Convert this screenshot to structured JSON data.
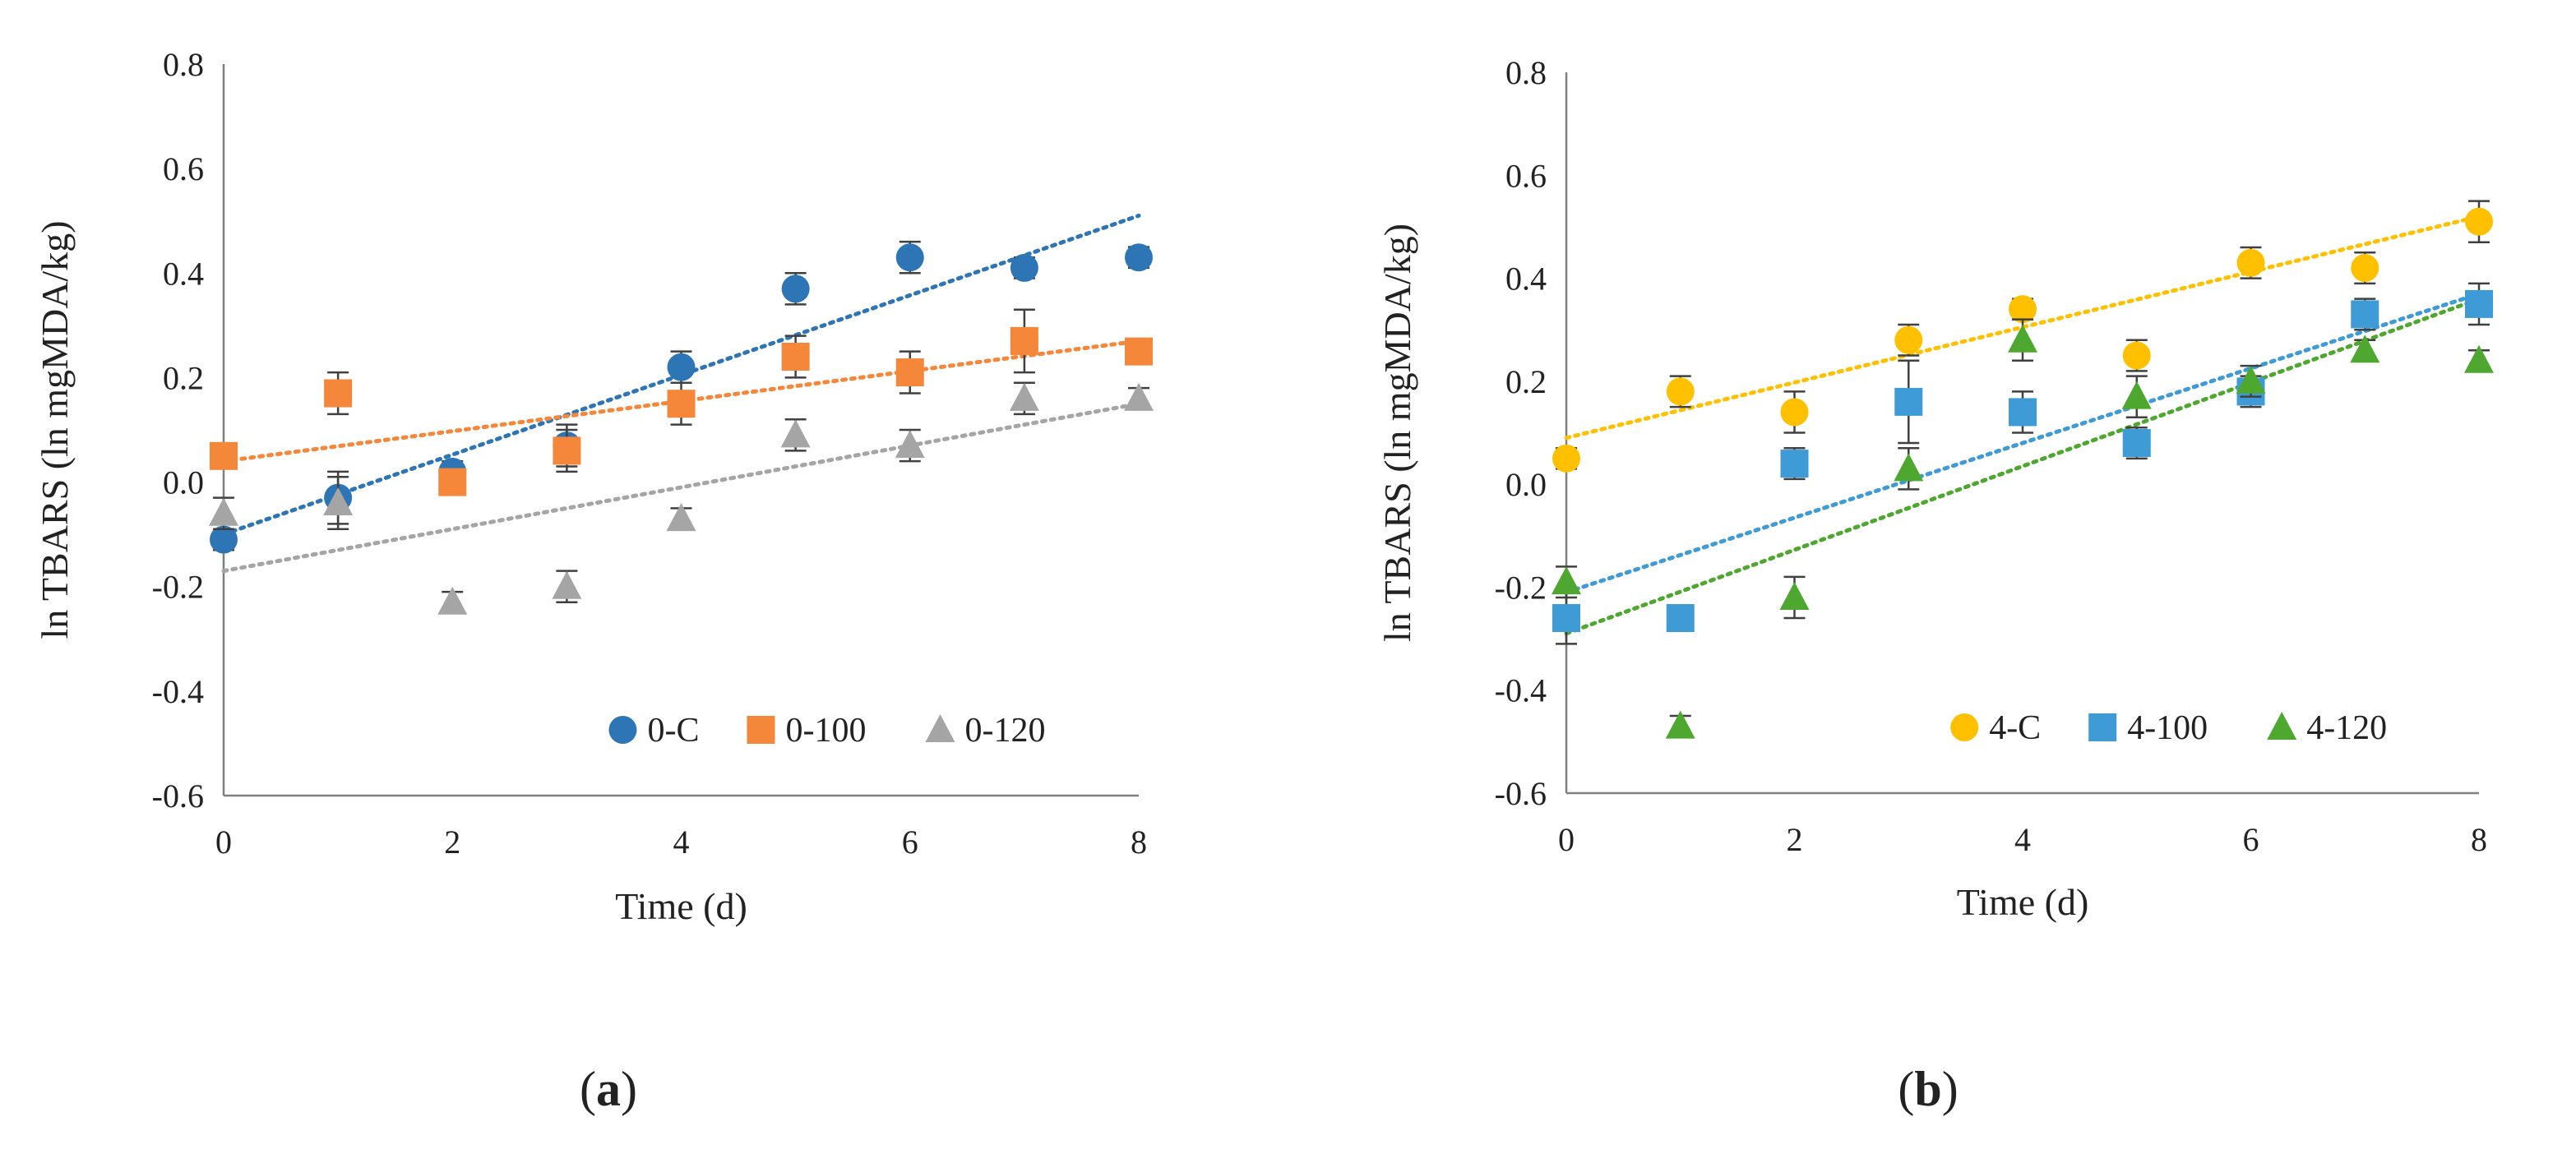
{
  "panels": [
    {
      "caption": "a",
      "chart_data": {
        "type": "scatter",
        "xlabel": "Time (d)",
        "ylabel": "ln TBARS (ln mgMDA/kg)",
        "xlim": [
          0,
          8
        ],
        "ylim": [
          -0.6,
          0.8
        ],
        "x_ticks": [
          "0",
          "2",
          "4",
          "6",
          "8"
        ],
        "y_ticks": [
          "-0.6",
          "-0.4",
          "-0.2",
          "0.0",
          "0.2",
          "0.4",
          "0.6",
          "0.8"
        ],
        "grid": false,
        "legend_position": "bottom-right",
        "trendlines": "linear, dotted",
        "series": [
          {
            "name": "0-C",
            "marker": "circle",
            "color": "#2E75B6",
            "x": [
              0,
              1,
              2,
              3,
              4,
              5,
              6,
              7,
              8
            ],
            "y": [
              -0.11,
              -0.03,
              0.02,
              0.07,
              0.22,
              0.37,
              0.43,
              0.41,
              0.43
            ],
            "err": [
              0.02,
              0.05,
              0.02,
              0.04,
              0.03,
              0.03,
              0.03,
              0.02,
              0.02
            ],
            "trend": [
              -0.1,
              0.51
            ]
          },
          {
            "name": "0-100",
            "marker": "square",
            "color": "#F4873A",
            "x": [
              0,
              1,
              2,
              3,
              4,
              5,
              6,
              7,
              8
            ],
            "y": [
              0.05,
              0.17,
              0.0,
              0.06,
              0.15,
              0.24,
              0.21,
              0.27,
              0.25
            ],
            "err": [
              0.02,
              0.04,
              0.02,
              0.04,
              0.04,
              0.04,
              0.04,
              0.06,
              0.02
            ],
            "trend": [
              0.04,
              0.27
            ]
          },
          {
            "name": "0-120",
            "marker": "triangle",
            "color": "#A5A5A5",
            "x": [
              0,
              1,
              2,
              3,
              4,
              5,
              6,
              7,
              8
            ],
            "y": [
              -0.06,
              -0.04,
              -0.23,
              -0.2,
              -0.07,
              0.09,
              0.07,
              0.16,
              0.16
            ],
            "err": [
              0.03,
              0.05,
              0.02,
              0.03,
              0.02,
              0.03,
              0.03,
              0.03,
              0.02
            ],
            "trend": [
              -0.17,
              0.15
            ]
          }
        ]
      }
    },
    {
      "caption": "b",
      "chart_data": {
        "type": "scatter",
        "xlabel": "Time (d)",
        "ylabel": "ln TBARS (ln mgMDA/kg)",
        "xlim": [
          0,
          8
        ],
        "ylim": [
          -0.6,
          0.8
        ],
        "x_ticks": [
          "0",
          "2",
          "4",
          "6",
          "8"
        ],
        "y_ticks": [
          "-0.6",
          "-0.4",
          "-0.2",
          "0.0",
          "0.2",
          "0.4",
          "0.6",
          "0.8"
        ],
        "grid": false,
        "legend_position": "bottom-right",
        "trendlines": "linear, dotted",
        "series": [
          {
            "name": "4-C",
            "marker": "circle",
            "color": "#FFC000",
            "x": [
              0,
              1,
              2,
              3,
              4,
              5,
              6,
              7,
              8
            ],
            "y": [
              0.05,
              0.18,
              0.14,
              0.28,
              0.34,
              0.25,
              0.43,
              0.42,
              0.51
            ],
            "err": [
              0.02,
              0.03,
              0.04,
              0.03,
              0.02,
              0.03,
              0.03,
              0.03,
              0.04
            ],
            "trend": [
              0.09,
              0.52
            ]
          },
          {
            "name": "4-100",
            "marker": "square",
            "color": "#3E9BD6",
            "x": [
              0,
              1,
              2,
              3,
              4,
              5,
              6,
              7,
              8
            ],
            "y": [
              -0.26,
              -0.26,
              0.04,
              0.16,
              0.14,
              0.08,
              0.18,
              0.33,
              0.35
            ],
            "err": [
              0.05,
              0.02,
              0.03,
              0.08,
              0.04,
              0.03,
              0.03,
              0.03,
              0.04
            ],
            "trend": [
              -0.21,
              0.37
            ]
          },
          {
            "name": "4-120",
            "marker": "triangle",
            "color": "#4EA72E",
            "x": [
              0,
              1,
              2,
              3,
              4,
              5,
              6,
              7,
              8
            ],
            "y": [
              -0.19,
              -0.47,
              -0.22,
              0.03,
              0.28,
              0.17,
              0.2,
              0.26,
              0.24
            ],
            "err": [
              0.03,
              0.02,
              0.04,
              0.04,
              0.04,
              0.04,
              0.03,
              0.02,
              0.02
            ],
            "trend": [
              -0.29,
              0.36
            ]
          }
        ]
      }
    }
  ]
}
